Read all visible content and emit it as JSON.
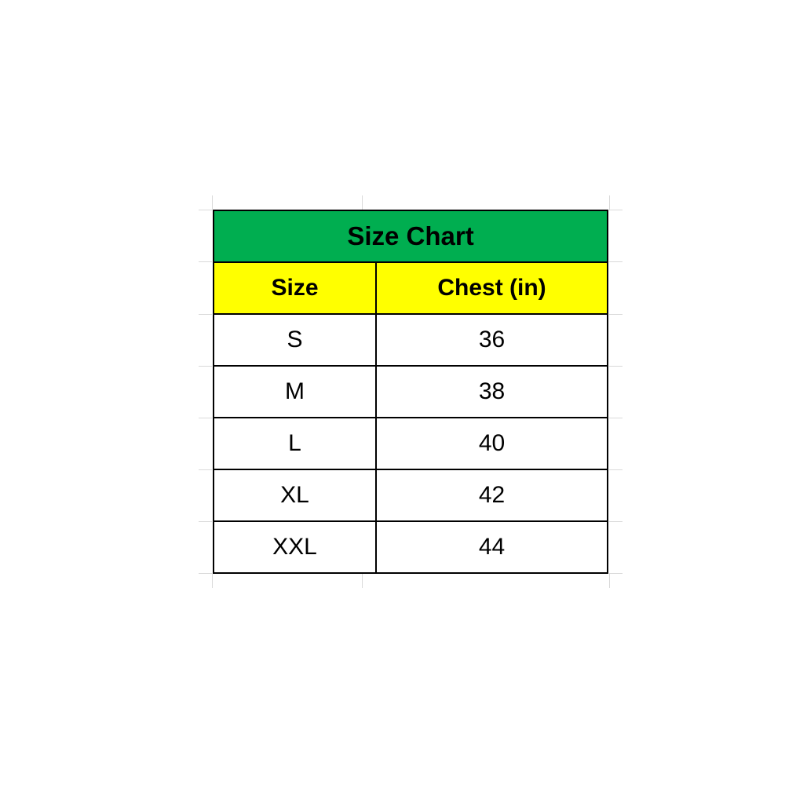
{
  "page": {
    "background": "#FFFFFF"
  },
  "table": {
    "title": "Size Chart",
    "columns": [
      "Size",
      "Chest (in)"
    ],
    "rows": [
      [
        "S",
        "36"
      ],
      [
        "M",
        "38"
      ],
      [
        "L",
        "40"
      ],
      [
        "XL",
        "42"
      ],
      [
        "XXL",
        "44"
      ]
    ],
    "colors": {
      "page_background": "#FFFFFF",
      "title_background": "#00AE50",
      "header_background": "#FFFF00",
      "cell_background": "#FFFFFF",
      "border": "#000000",
      "text": "#000000",
      "gridline": "#D9D9D9"
    }
  },
  "chart_data": {
    "type": "table",
    "title": "Size Chart",
    "columns": [
      "Size",
      "Chest (in)"
    ],
    "rows": [
      [
        "S",
        36
      ],
      [
        "M",
        38
      ],
      [
        "L",
        40
      ],
      [
        "XL",
        42
      ],
      [
        "XXL",
        44
      ]
    ],
    "notes": "Spreadsheet-style size chart table; green merged title row, yellow header row, white data rows, black cell borders, faint gray spreadsheet gridline ticks visible just outside the table."
  }
}
